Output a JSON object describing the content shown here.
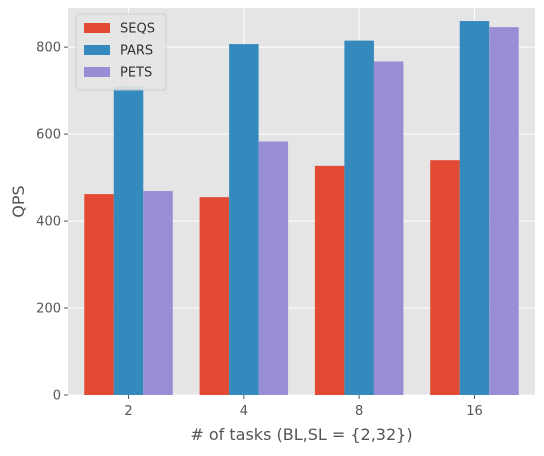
{
  "chart_data": {
    "type": "bar",
    "title": "",
    "xlabel": "# of tasks (BL,SL = {2,32})",
    "ylabel": "QPS",
    "categories": [
      "2",
      "4",
      "8",
      "16"
    ],
    "ylim": [
      0,
      890
    ],
    "yticks": [
      0,
      200,
      400,
      600,
      800
    ],
    "grid": true,
    "legend_position": "top-left",
    "series": [
      {
        "name": "SEQS",
        "color": "#E24A33",
        "values": [
          462,
          455,
          527,
          540
        ]
      },
      {
        "name": "PARS",
        "color": "#348ABD",
        "values": [
          710,
          807,
          815,
          860
        ]
      },
      {
        "name": "PETS",
        "color": "#988ED5",
        "values": [
          469,
          583,
          767,
          846
        ]
      }
    ]
  },
  "style": {
    "plot_background": "#E5E5E5",
    "grid_color": "#FFFFFF",
    "tick_color": "#555555",
    "label_color": "#555555"
  }
}
